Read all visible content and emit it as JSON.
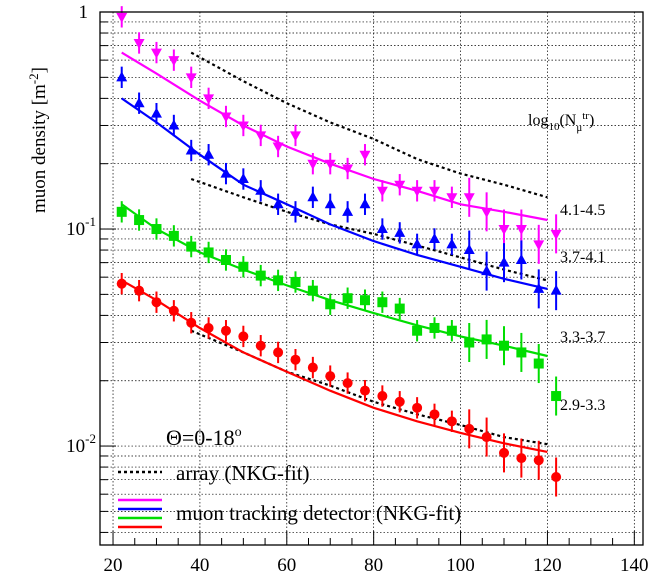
{
  "chart_data": {
    "type": "scatter",
    "title": "",
    "ylabel": "muon density [m",
    "ylabel_sup": "-2",
    "ylabel_end": "]",
    "xlabel": "",
    "x_scale": "linear",
    "y_scale": "log",
    "xlim": [
      17,
      142
    ],
    "ylim": [
      0.0035,
      1.0
    ],
    "grid": true,
    "x_ticks": [
      "20",
      "40",
      "60",
      "80",
      "100",
      "120",
      "140"
    ],
    "x_tick_values": [
      20,
      40,
      60,
      80,
      100,
      120,
      140
    ],
    "y_tick_labels": [
      {
        "base": "1",
        "exp": "",
        "value": 1.0
      },
      {
        "base": "10",
        "exp": "-1",
        "value": 0.1
      },
      {
        "base": "10",
        "exp": "-2",
        "value": 0.01
      }
    ],
    "legend_title": {
      "text": "log",
      "sub": "10",
      "paren": "(N",
      "sub2": "μ",
      "sup2": "tr",
      "close": ")"
    },
    "theta_label": {
      "text": "Θ=0-18",
      "sup": "o"
    },
    "legend_placement": "bottom-left",
    "legend": [
      {
        "label": "array (NKG-fit)",
        "style": "dotted",
        "colors": [
          "#000000"
        ]
      },
      {
        "label": "muon tracking detector (NKG-fit)",
        "style": "solid",
        "colors": [
          "#ff00ff",
          "#0000ff",
          "#00dd00",
          "#ff0000"
        ]
      }
    ],
    "series": [
      {
        "name": "4.1-4.5",
        "color": "#ff00ff",
        "marker": "triangle-down",
        "points": [
          [
            22,
            0.95
          ],
          [
            26,
            0.72
          ],
          [
            30,
            0.65
          ],
          [
            34,
            0.6
          ],
          [
            38,
            0.5
          ],
          [
            42,
            0.4
          ],
          [
            46,
            0.33
          ],
          [
            50,
            0.3
          ],
          [
            54,
            0.27
          ],
          [
            58,
            0.24
          ],
          [
            62,
            0.27
          ],
          [
            66,
            0.2
          ],
          [
            70,
            0.2
          ],
          [
            74,
            0.19
          ],
          [
            78,
            0.22
          ],
          [
            82,
            0.15
          ],
          [
            86,
            0.16
          ],
          [
            90,
            0.15
          ],
          [
            94,
            0.15
          ],
          [
            98,
            0.14
          ],
          [
            102,
            0.14
          ],
          [
            106,
            0.12
          ],
          [
            110,
            0.1
          ],
          [
            114,
            0.1
          ],
          [
            118,
            0.085
          ],
          [
            122,
            0.095
          ]
        ],
        "fit": [
          [
            22,
            0.65
          ],
          [
            30,
            0.52
          ],
          [
            40,
            0.39
          ],
          [
            50,
            0.3
          ],
          [
            60,
            0.24
          ],
          [
            70,
            0.2
          ],
          [
            80,
            0.17
          ],
          [
            90,
            0.15
          ],
          [
            100,
            0.13
          ],
          [
            110,
            0.12
          ],
          [
            120,
            0.11
          ]
        ],
        "array_fit": [
          [
            38,
            0.65
          ],
          [
            50,
            0.48
          ],
          [
            60,
            0.38
          ],
          [
            70,
            0.31
          ],
          [
            80,
            0.26
          ],
          [
            90,
            0.21
          ],
          [
            100,
            0.18
          ],
          [
            110,
            0.16
          ],
          [
            120,
            0.14
          ]
        ]
      },
      {
        "name": "3.7-4.1",
        "color": "#0000ff",
        "marker": "triangle-up",
        "points": [
          [
            22,
            0.5
          ],
          [
            26,
            0.38
          ],
          [
            30,
            0.34
          ],
          [
            34,
            0.3
          ],
          [
            38,
            0.23
          ],
          [
            42,
            0.22
          ],
          [
            46,
            0.18
          ],
          [
            50,
            0.17
          ],
          [
            54,
            0.15
          ],
          [
            58,
            0.13
          ],
          [
            62,
            0.12
          ],
          [
            66,
            0.14
          ],
          [
            70,
            0.13
          ],
          [
            74,
            0.12
          ],
          [
            78,
            0.13
          ],
          [
            82,
            0.1
          ],
          [
            86,
            0.096
          ],
          [
            90,
            0.085
          ],
          [
            94,
            0.09
          ],
          [
            98,
            0.085
          ],
          [
            102,
            0.08
          ],
          [
            106,
            0.064
          ],
          [
            110,
            0.07
          ],
          [
            114,
            0.072
          ],
          [
            118,
            0.053
          ],
          [
            122,
            0.052
          ]
        ],
        "fit": [
          [
            22,
            0.4
          ],
          [
            30,
            0.31
          ],
          [
            40,
            0.22
          ],
          [
            50,
            0.16
          ],
          [
            60,
            0.13
          ],
          [
            70,
            0.105
          ],
          [
            80,
            0.088
          ],
          [
            90,
            0.076
          ],
          [
            100,
            0.067
          ],
          [
            110,
            0.059
          ],
          [
            120,
            0.053
          ]
        ],
        "array_fit": [
          [
            38,
            0.17
          ],
          [
            50,
            0.14
          ],
          [
            60,
            0.12
          ],
          [
            70,
            0.105
          ],
          [
            80,
            0.095
          ],
          [
            90,
            0.084
          ],
          [
            100,
            0.074
          ],
          [
            110,
            0.065
          ],
          [
            120,
            0.058
          ]
        ]
      },
      {
        "name": "3.3-3.7",
        "color": "#00dd00",
        "marker": "square",
        "points": [
          [
            22,
            0.12
          ],
          [
            26,
            0.11
          ],
          [
            30,
            0.1
          ],
          [
            34,
            0.093
          ],
          [
            38,
            0.083
          ],
          [
            42,
            0.078
          ],
          [
            46,
            0.072
          ],
          [
            50,
            0.067
          ],
          [
            54,
            0.061
          ],
          [
            58,
            0.058
          ],
          [
            62,
            0.057
          ],
          [
            66,
            0.052
          ],
          [
            70,
            0.045
          ],
          [
            74,
            0.048
          ],
          [
            78,
            0.047
          ],
          [
            82,
            0.046
          ],
          [
            86,
            0.043
          ],
          [
            90,
            0.034
          ],
          [
            94,
            0.035
          ],
          [
            98,
            0.034
          ],
          [
            102,
            0.03
          ],
          [
            106,
            0.031
          ],
          [
            110,
            0.029
          ],
          [
            114,
            0.027
          ],
          [
            118,
            0.024
          ],
          [
            122,
            0.017
          ]
        ],
        "fit": [
          [
            22,
            0.13
          ],
          [
            30,
            0.1
          ],
          [
            40,
            0.078
          ],
          [
            50,
            0.065
          ],
          [
            60,
            0.055
          ],
          [
            70,
            0.047
          ],
          [
            80,
            0.041
          ],
          [
            90,
            0.036
          ],
          [
            100,
            0.032
          ],
          [
            110,
            0.029
          ],
          [
            120,
            0.026
          ]
        ]
      },
      {
        "name": "2.9-3.3",
        "color": "#ff0000",
        "marker": "circle",
        "points": [
          [
            22,
            0.056
          ],
          [
            26,
            0.052
          ],
          [
            30,
            0.046
          ],
          [
            34,
            0.042
          ],
          [
            38,
            0.037
          ],
          [
            42,
            0.035
          ],
          [
            46,
            0.034
          ],
          [
            50,
            0.032
          ],
          [
            54,
            0.029
          ],
          [
            58,
            0.027
          ],
          [
            62,
            0.025
          ],
          [
            66,
            0.023
          ],
          [
            70,
            0.021
          ],
          [
            74,
            0.0195
          ],
          [
            78,
            0.018
          ],
          [
            82,
            0.017
          ],
          [
            86,
            0.016
          ],
          [
            90,
            0.015
          ],
          [
            94,
            0.014
          ],
          [
            98,
            0.013
          ],
          [
            102,
            0.012
          ],
          [
            106,
            0.011
          ],
          [
            110,
            0.0093
          ],
          [
            114,
            0.0088
          ],
          [
            118,
            0.0086
          ],
          [
            122,
            0.0072
          ]
        ],
        "fit": [
          [
            22,
            0.058
          ],
          [
            30,
            0.047
          ],
          [
            40,
            0.035
          ],
          [
            50,
            0.027
          ],
          [
            60,
            0.022
          ],
          [
            70,
            0.018
          ],
          [
            80,
            0.015
          ],
          [
            90,
            0.013
          ],
          [
            100,
            0.0115
          ],
          [
            110,
            0.0103
          ],
          [
            120,
            0.0094
          ]
        ],
        "array_fit": [
          [
            38,
            0.034
          ],
          [
            50,
            0.027
          ],
          [
            60,
            0.022
          ],
          [
            70,
            0.019
          ],
          [
            80,
            0.016
          ],
          [
            90,
            0.014
          ],
          [
            100,
            0.0125
          ],
          [
            110,
            0.011
          ],
          [
            120,
            0.0102
          ]
        ]
      }
    ]
  }
}
